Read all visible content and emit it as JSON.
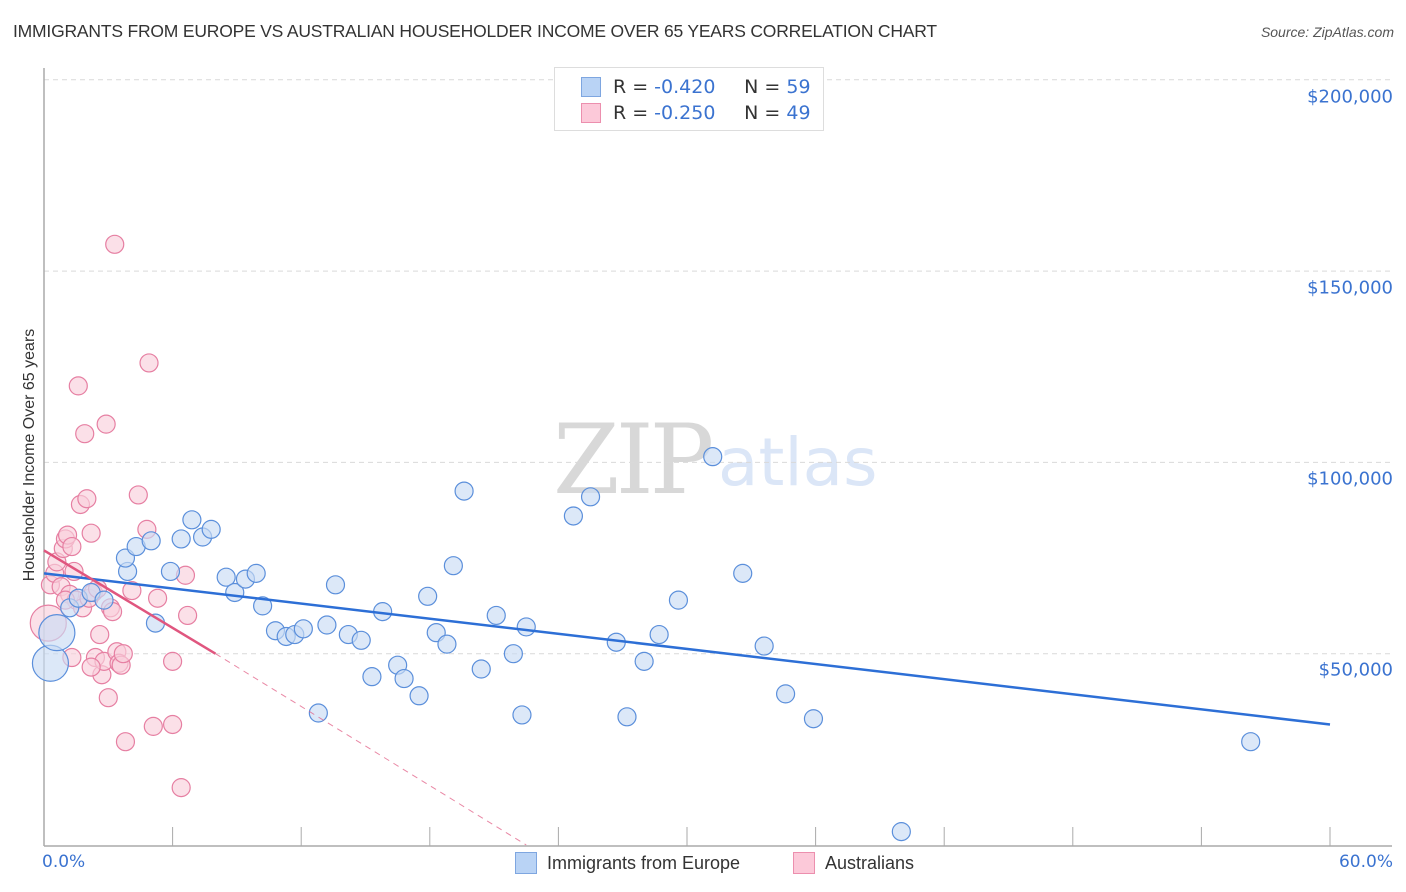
{
  "header": {
    "title": "IMMIGRANTS FROM EUROPE VS AUSTRALIAN HOUSEHOLDER INCOME OVER 65 YEARS CORRELATION CHART",
    "source": "Source: ZipAtlas.com"
  },
  "watermark": {
    "zip": "ZIP",
    "atlas": "atlas"
  },
  "legend": {
    "rows": [
      {
        "r_label": "R =",
        "r_value": "-0.420",
        "n_label": "N =",
        "n_value": "59",
        "color": "#b9d3f5",
        "border": "#7ea6e0"
      },
      {
        "r_label": "R =",
        "r_value": "-0.250",
        "n_label": "N =",
        "n_value": "49",
        "color": "#fcc9d9",
        "border": "#ec8fae"
      }
    ]
  },
  "axes": {
    "y_label": "Householder Income Over 65 years",
    "y_ticks": [
      "$200,000",
      "$150,000",
      "$100,000",
      "$50,000"
    ],
    "x_min_label": "0.0%",
    "x_max_label": "60.0%"
  },
  "bottom_legend": [
    {
      "label": "Immigrants from Europe",
      "color": "#b9d3f5",
      "border": "#7ea6e0"
    },
    {
      "label": "Australians",
      "color": "#fcc9d9",
      "border": "#ec8fae"
    }
  ],
  "colors": {
    "blue_fill": "#c9dcf5",
    "blue_stroke": "#5b8fdb",
    "blue_line": "#2d6fd6",
    "pink_fill": "#f9cfdc",
    "pink_stroke": "#e67fa2",
    "pink_line": "#e0567f"
  },
  "chart_data": {
    "type": "scatter",
    "title": "IMMIGRANTS FROM EUROPE VS AUSTRALIAN HOUSEHOLDER INCOME OVER 65 YEARS CORRELATION CHART",
    "xlabel": "Immigrants from Europe (%)",
    "ylabel": "Householder Income Over 65 years",
    "xlim": [
      0,
      60
    ],
    "ylim": [
      0,
      205000
    ],
    "y_ticks": [
      50000,
      100000,
      150000,
      200000
    ],
    "grid": "horizontal dashed",
    "legend_position": "top-center and bottom",
    "series": [
      {
        "name": "Immigrants from Europe",
        "R": -0.42,
        "N": 59,
        "trend": {
          "x": [
            0,
            60
          ],
          "y": [
            71000,
            31500
          ]
        },
        "points": [
          [
            0.3,
            47500,
            "L"
          ],
          [
            0.6,
            55500,
            "L"
          ],
          [
            1.2,
            62000
          ],
          [
            1.6,
            64500
          ],
          [
            2.2,
            66000
          ],
          [
            2.8,
            64000
          ],
          [
            3.9,
            71500
          ],
          [
            3.8,
            75000
          ],
          [
            4.3,
            78000
          ],
          [
            5.0,
            79500
          ],
          [
            5.2,
            58000
          ],
          [
            5.9,
            71500
          ],
          [
            6.4,
            80000
          ],
          [
            6.9,
            85000
          ],
          [
            7.4,
            80500
          ],
          [
            7.8,
            82500
          ],
          [
            8.5,
            70000
          ],
          [
            8.9,
            66000
          ],
          [
            9.4,
            69500
          ],
          [
            9.9,
            71000
          ],
          [
            10.2,
            62500
          ],
          [
            10.8,
            56000
          ],
          [
            11.3,
            54500
          ],
          [
            11.7,
            55000
          ],
          [
            12.1,
            56500
          ],
          [
            12.8,
            34500
          ],
          [
            13.2,
            57500
          ],
          [
            13.6,
            68000
          ],
          [
            14.2,
            55000
          ],
          [
            14.8,
            53500
          ],
          [
            15.3,
            44000
          ],
          [
            15.8,
            61000
          ],
          [
            16.5,
            47000
          ],
          [
            16.8,
            43500
          ],
          [
            17.5,
            39000
          ],
          [
            17.9,
            65000
          ],
          [
            18.3,
            55500
          ],
          [
            18.8,
            52500
          ],
          [
            19.1,
            73000
          ],
          [
            19.6,
            92500
          ],
          [
            20.4,
            46000
          ],
          [
            21.1,
            60000
          ],
          [
            21.9,
            50000
          ],
          [
            22.3,
            34000
          ],
          [
            22.5,
            57000
          ],
          [
            24.7,
            86000
          ],
          [
            25.5,
            91000
          ],
          [
            26.7,
            53000
          ],
          [
            27.2,
            33500
          ],
          [
            28.0,
            48000
          ],
          [
            28.7,
            55000
          ],
          [
            29.6,
            64000
          ],
          [
            31.2,
            101500
          ],
          [
            32.6,
            71000
          ],
          [
            33.6,
            52000
          ],
          [
            34.6,
            39500
          ],
          [
            35.9,
            33000
          ],
          [
            40.0,
            3500
          ],
          [
            56.3,
            27000
          ]
        ]
      },
      {
        "name": "Australians",
        "R": -0.25,
        "N": 49,
        "trend": {
          "x": [
            0,
            8
          ],
          "y": [
            77000,
            50000
          ],
          "dashed_extension": {
            "x": [
              8,
              22.5
            ],
            "y": [
              50000,
              0
            ]
          }
        },
        "points": [
          [
            0.2,
            58000,
            "L"
          ],
          [
            0.3,
            68000
          ],
          [
            0.5,
            71000
          ],
          [
            0.6,
            74000
          ],
          [
            0.8,
            67500
          ],
          [
            0.9,
            77500
          ],
          [
            1.0,
            80000
          ],
          [
            1.1,
            81000
          ],
          [
            1.2,
            65500
          ],
          [
            1.3,
            78000
          ],
          [
            1.4,
            71500
          ],
          [
            1.5,
            64000
          ],
          [
            1.6,
            120000
          ],
          [
            1.7,
            89000
          ],
          [
            1.8,
            62000
          ],
          [
            1.9,
            107500
          ],
          [
            2.0,
            90500
          ],
          [
            2.1,
            64500
          ],
          [
            2.2,
            81500
          ],
          [
            2.3,
            66000
          ],
          [
            2.4,
            49000
          ],
          [
            2.5,
            67000
          ],
          [
            2.6,
            55000
          ],
          [
            2.7,
            44500
          ],
          [
            2.8,
            48000
          ],
          [
            2.9,
            110000
          ],
          [
            3.0,
            38500
          ],
          [
            3.1,
            62000
          ],
          [
            3.2,
            61000
          ],
          [
            3.3,
            157000
          ],
          [
            3.4,
            50500
          ],
          [
            3.5,
            47500
          ],
          [
            3.6,
            47000
          ],
          [
            3.8,
            27000
          ],
          [
            4.1,
            66500
          ],
          [
            4.4,
            91500
          ],
          [
            4.8,
            82500
          ],
          [
            4.9,
            126000
          ],
          [
            5.1,
            31000
          ],
          [
            5.3,
            64500
          ],
          [
            6.0,
            31500
          ],
          [
            6.0,
            48000
          ],
          [
            6.4,
            15000
          ],
          [
            6.6,
            70500
          ],
          [
            6.7,
            60000
          ],
          [
            2.2,
            46500
          ],
          [
            1.3,
            49000
          ],
          [
            3.7,
            50000
          ],
          [
            1.0,
            64000
          ]
        ]
      }
    ]
  }
}
